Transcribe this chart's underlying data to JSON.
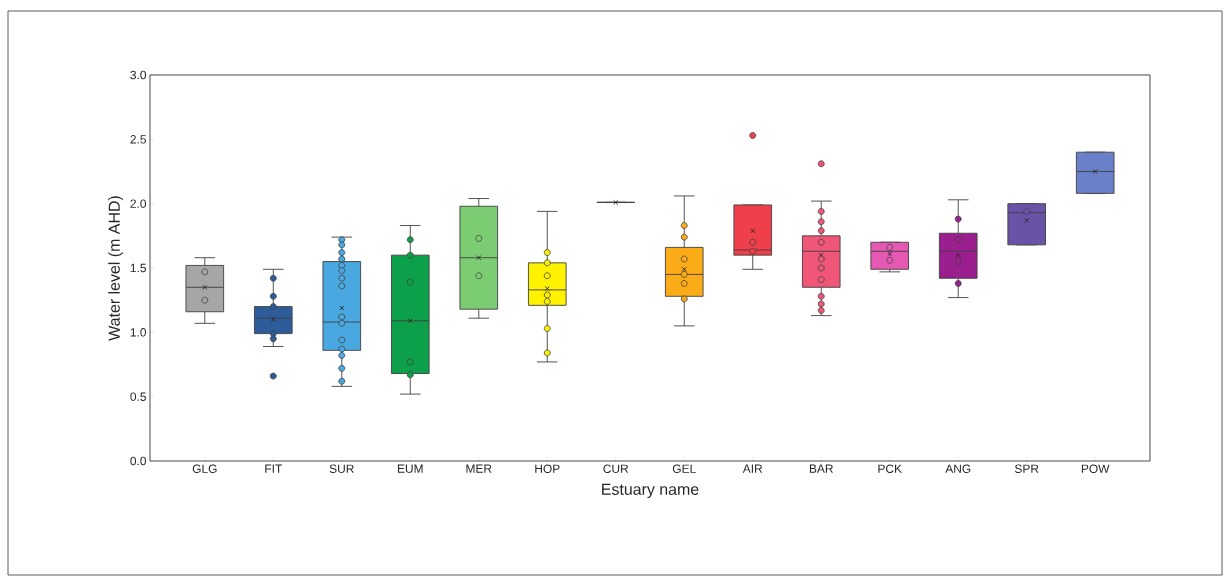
{
  "chart_data": {
    "type": "box",
    "xlabel": "Estuary name",
    "ylabel": "Water level (m AHD)",
    "categories": [
      "GLG",
      "FIT",
      "SUR",
      "EUM",
      "MER",
      "HOP",
      "CUR",
      "GEL",
      "AIR",
      "BAR",
      "PCK",
      "ANG",
      "SPR",
      "POW"
    ],
    "colors": [
      "#a6a6a8",
      "#2e5c9a",
      "#4aa8e0",
      "#0da04a",
      "#7ccc74",
      "#fff200",
      "#404040",
      "#fbab18",
      "#ee3f4a",
      "#ef5677",
      "#e659b3",
      "#9b1e8e",
      "#6953a8",
      "#6a80c8"
    ],
    "boxes": [
      {
        "low": 1.07,
        "q1": 1.16,
        "median": 1.35,
        "q3": 1.52,
        "high": 1.58,
        "mean": 1.35
      },
      {
        "low": 0.89,
        "q1": 0.99,
        "median": 1.11,
        "q3": 1.2,
        "high": 1.49,
        "mean": 1.1,
        "outliers": [
          0.66
        ]
      },
      {
        "low": 0.58,
        "q1": 0.86,
        "median": 1.08,
        "q3": 1.55,
        "high": 1.74,
        "mean": 1.19
      },
      {
        "low": 0.52,
        "q1": 0.68,
        "median": 1.09,
        "q3": 1.6,
        "high": 1.83,
        "mean": 1.09
      },
      {
        "low": 1.11,
        "q1": 1.18,
        "median": 1.58,
        "q3": 1.98,
        "high": 2.04,
        "mean": 1.58
      },
      {
        "low": 0.77,
        "q1": 1.21,
        "median": 1.33,
        "q3": 1.54,
        "high": 1.94,
        "mean": 1.34
      },
      {
        "low": 2.01,
        "q1": 2.01,
        "median": 2.01,
        "q3": 2.01,
        "high": 2.01,
        "mean": 2.01
      },
      {
        "low": 1.05,
        "q1": 1.28,
        "median": 1.45,
        "q3": 1.66,
        "high": 2.06,
        "mean": 1.49
      },
      {
        "low": 1.49,
        "q1": 1.6,
        "median": 1.64,
        "q3": 1.99,
        "high": 1.99,
        "mean": 1.79,
        "outliers": [
          2.53
        ]
      },
      {
        "low": 1.13,
        "q1": 1.35,
        "median": 1.63,
        "q3": 1.75,
        "high": 2.02,
        "mean": 1.6,
        "outliers": [
          2.31
        ]
      },
      {
        "low": 1.47,
        "q1": 1.49,
        "median": 1.63,
        "q3": 1.7,
        "high": 1.7,
        "mean": 1.61
      },
      {
        "low": 1.27,
        "q1": 1.42,
        "median": 1.63,
        "q3": 1.77,
        "high": 2.03,
        "mean": 1.6
      },
      {
        "low": 1.68,
        "q1": 1.68,
        "median": 1.93,
        "q3": 2.0,
        "high": 2.0,
        "mean": 1.87
      },
      {
        "low": 2.08,
        "q1": 2.08,
        "median": 2.25,
        "q3": 2.4,
        "high": 2.4,
        "mean": 2.25
      }
    ],
    "series": [
      {
        "type": "scatter",
        "color": "#a6a6a8",
        "x": [
          "GLG",
          "GLG"
        ],
        "values": [
          1.47,
          1.25
        ]
      },
      {
        "type": "scatter",
        "color": "#2e5c9a",
        "x": [
          "FIT",
          "FIT",
          "FIT",
          "FIT",
          "FIT"
        ],
        "values": [
          1.42,
          1.28,
          1.2,
          0.99,
          0.95
        ]
      },
      {
        "type": "scatter",
        "color": "#4aa8e0",
        "x": [
          "SUR",
          "SUR",
          "SUR",
          "SUR",
          "SUR",
          "SUR",
          "SUR",
          "SUR",
          "SUR",
          "SUR",
          "SUR",
          "SUR",
          "SUR",
          "SUR",
          "SUR"
        ],
        "values": [
          1.72,
          1.68,
          1.62,
          1.57,
          1.52,
          1.48,
          1.42,
          1.36,
          1.12,
          1.07,
          0.94,
          0.87,
          0.82,
          0.72,
          0.62
        ]
      },
      {
        "type": "scatter",
        "color": "#0da04a",
        "x": [
          "EUM",
          "EUM",
          "EUM",
          "EUM",
          "EUM"
        ],
        "values": [
          1.72,
          1.6,
          1.39,
          0.77,
          0.67
        ]
      },
      {
        "type": "scatter",
        "color": "#7ccc74",
        "x": [
          "MER",
          "MER"
        ],
        "values": [
          1.73,
          1.44
        ]
      },
      {
        "type": "scatter",
        "color": "#fff200",
        "x": [
          "HOP",
          "HOP",
          "HOP",
          "HOP",
          "HOP",
          "HOP",
          "HOP"
        ],
        "values": [
          1.62,
          1.54,
          1.44,
          1.29,
          1.24,
          1.03,
          0.84
        ]
      },
      {
        "type": "scatter",
        "color": "#fbab18",
        "x": [
          "GEL",
          "GEL",
          "GEL",
          "GEL",
          "GEL",
          "GEL"
        ],
        "values": [
          1.83,
          1.74,
          1.57,
          1.45,
          1.38,
          1.26
        ]
      },
      {
        "type": "scatter",
        "color": "#ee3f4a",
        "x": [
          "AIR",
          "AIR"
        ],
        "values": [
          1.7,
          1.63
        ]
      },
      {
        "type": "scatter",
        "color": "#ef5677",
        "x": [
          "BAR",
          "BAR",
          "BAR",
          "BAR",
          "BAR",
          "BAR",
          "BAR",
          "BAR",
          "BAR",
          "BAR"
        ],
        "values": [
          1.94,
          1.86,
          1.79,
          1.7,
          1.57,
          1.5,
          1.41,
          1.28,
          1.22,
          1.17
        ]
      },
      {
        "type": "scatter",
        "color": "#e659b3",
        "x": [
          "PCK",
          "PCK"
        ],
        "values": [
          1.66,
          1.56
        ]
      },
      {
        "type": "scatter",
        "color": "#9b1e8e",
        "x": [
          "ANG",
          "ANG",
          "ANG",
          "ANG"
        ],
        "values": [
          1.88,
          1.72,
          1.55,
          1.38
        ]
      },
      {
        "type": "scatter",
        "color": "#6953a8",
        "x": [
          "SPR"
        ],
        "values": [
          1.94
        ]
      }
    ],
    "ylim": [
      0,
      3
    ],
    "yticks": [
      {
        "value": 0,
        "label": "0.0"
      },
      0.5,
      {
        "value": 1,
        "label": "1.0"
      },
      1.5,
      {
        "value": 2,
        "label": "2.0"
      },
      2.5,
      {
        "value": 3,
        "label": "3.0"
      }
    ],
    "marker": "circle",
    "grid": false
  }
}
